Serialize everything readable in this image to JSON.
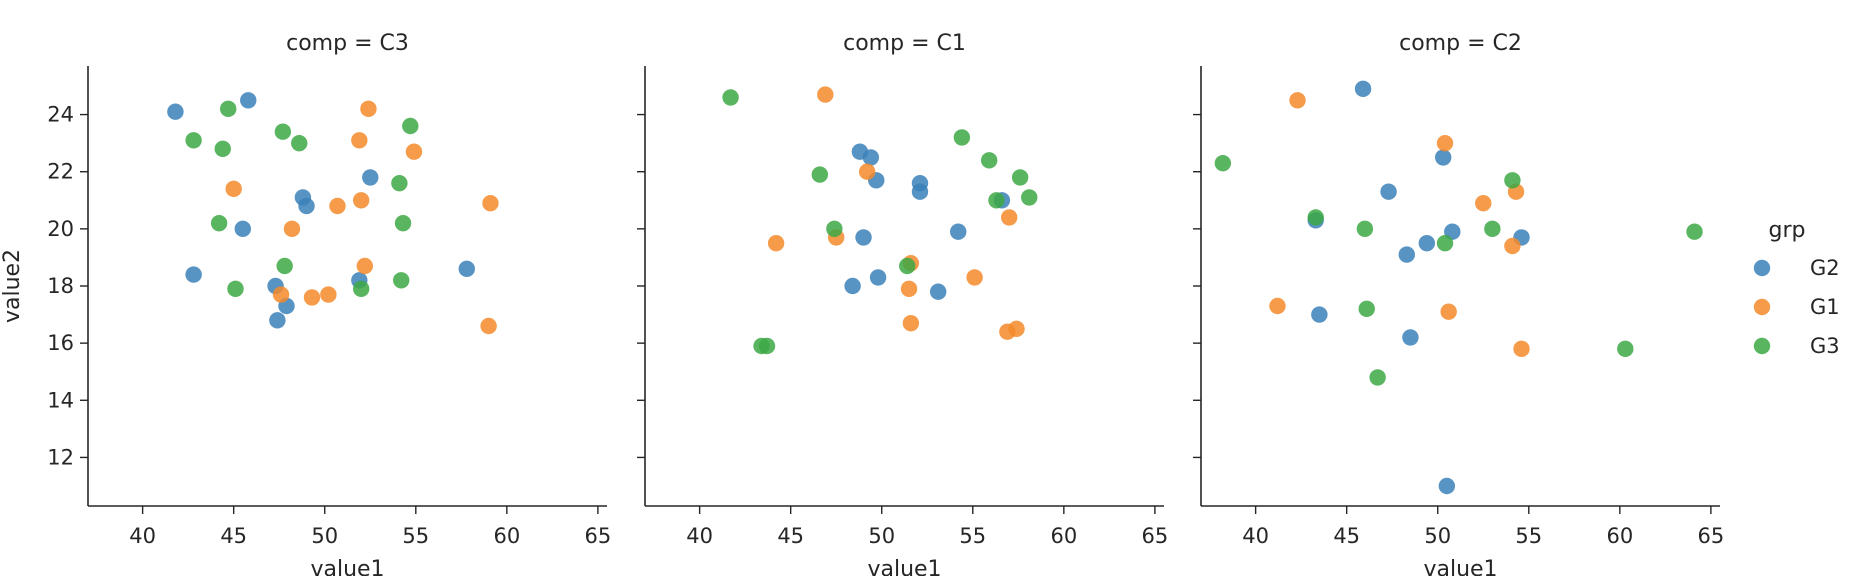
{
  "chart_data": {
    "type": "scatter",
    "facet_variable": "comp",
    "xlabel": "value1",
    "ylabel": "value2",
    "xlim": [
      37,
      65.5
    ],
    "ylim": [
      10.3,
      25.7
    ],
    "xticks": [
      40,
      45,
      50,
      55,
      60,
      65
    ],
    "yticks": [
      12,
      14,
      16,
      18,
      20,
      22,
      24
    ],
    "legend": {
      "title": "grp",
      "placement": "right",
      "entries": [
        {
          "name": "G2",
          "color": "#3a80b8"
        },
        {
          "name": "G1",
          "color": "#f58a2a"
        },
        {
          "name": "G3",
          "color": "#3da845"
        }
      ]
    },
    "facets": [
      {
        "title": "comp = C3",
        "series": [
          {
            "name": "G2",
            "points": [
              [
                41.8,
                24.1
              ],
              [
                45.8,
                24.5
              ],
              [
                42.8,
                18.4
              ],
              [
                45.5,
                20.0
              ],
              [
                48.8,
                21.1
              ],
              [
                49.0,
                20.8
              ],
              [
                52.5,
                21.8
              ],
              [
                47.3,
                18.0
              ],
              [
                47.9,
                17.3
              ],
              [
                47.4,
                16.8
              ],
              [
                51.9,
                18.2
              ],
              [
                57.8,
                18.6
              ]
            ]
          },
          {
            "name": "G1",
            "points": [
              [
                52.4,
                24.2
              ],
              [
                51.9,
                23.1
              ],
              [
                54.9,
                22.7
              ],
              [
                45.0,
                21.4
              ],
              [
                52.0,
                21.0
              ],
              [
                50.7,
                20.8
              ],
              [
                48.2,
                20.0
              ],
              [
                59.1,
                20.9
              ],
              [
                52.2,
                18.7
              ],
              [
                47.6,
                17.7
              ],
              [
                49.3,
                17.6
              ],
              [
                50.2,
                17.7
              ],
              [
                59.0,
                16.6
              ]
            ]
          },
          {
            "name": "G3",
            "points": [
              [
                42.8,
                23.1
              ],
              [
                44.7,
                24.2
              ],
              [
                44.4,
                22.8
              ],
              [
                47.7,
                23.4
              ],
              [
                48.6,
                23.0
              ],
              [
                54.7,
                23.6
              ],
              [
                54.1,
                21.6
              ],
              [
                44.2,
                20.2
              ],
              [
                54.3,
                20.2
              ],
              [
                47.8,
                18.7
              ],
              [
                45.1,
                17.9
              ],
              [
                52.0,
                17.9
              ],
              [
                54.2,
                18.2
              ]
            ]
          }
        ]
      },
      {
        "title": "comp = C1",
        "series": [
          {
            "name": "G2",
            "points": [
              [
                48.8,
                22.7
              ],
              [
                49.4,
                22.5
              ],
              [
                49.7,
                21.7
              ],
              [
                52.1,
                21.6
              ],
              [
                52.1,
                21.3
              ],
              [
                56.6,
                21.0
              ],
              [
                49.0,
                19.7
              ],
              [
                54.2,
                19.9
              ],
              [
                48.4,
                18.0
              ],
              [
                49.8,
                18.3
              ],
              [
                53.1,
                17.8
              ]
            ]
          },
          {
            "name": "G1",
            "points": [
              [
                46.9,
                24.7
              ],
              [
                49.2,
                22.0
              ],
              [
                57.0,
                20.4
              ],
              [
                44.2,
                19.5
              ],
              [
                47.5,
                19.7
              ],
              [
                51.6,
                18.8
              ],
              [
                51.5,
                17.9
              ],
              [
                55.1,
                18.3
              ],
              [
                51.6,
                16.7
              ],
              [
                56.9,
                16.4
              ],
              [
                57.4,
                16.5
              ]
            ]
          },
          {
            "name": "G3",
            "points": [
              [
                41.7,
                24.6
              ],
              [
                54.4,
                23.2
              ],
              [
                55.9,
                22.4
              ],
              [
                46.6,
                21.9
              ],
              [
                57.6,
                21.8
              ],
              [
                56.3,
                21.0
              ],
              [
                58.1,
                21.1
              ],
              [
                47.4,
                20.0
              ],
              [
                51.4,
                18.7
              ],
              [
                43.4,
                15.9
              ],
              [
                43.7,
                15.9
              ]
            ]
          }
        ]
      },
      {
        "title": "comp = C2",
        "series": [
          {
            "name": "G2",
            "points": [
              [
                45.9,
                24.9
              ],
              [
                50.3,
                22.5
              ],
              [
                47.3,
                21.3
              ],
              [
                43.3,
                20.3
              ],
              [
                50.8,
                19.9
              ],
              [
                54.6,
                19.7
              ],
              [
                49.4,
                19.5
              ],
              [
                48.3,
                19.1
              ],
              [
                43.5,
                17.0
              ],
              [
                48.5,
                16.2
              ],
              [
                50.5,
                11.0
              ]
            ]
          },
          {
            "name": "G1",
            "points": [
              [
                42.3,
                24.5
              ],
              [
                50.4,
                23.0
              ],
              [
                52.5,
                20.9
              ],
              [
                54.3,
                21.3
              ],
              [
                54.1,
                19.4
              ],
              [
                41.2,
                17.3
              ],
              [
                50.6,
                17.1
              ],
              [
                54.6,
                15.8
              ]
            ]
          },
          {
            "name": "G3",
            "points": [
              [
                38.2,
                22.3
              ],
              [
                54.1,
                21.7
              ],
              [
                43.3,
                20.4
              ],
              [
                46.0,
                20.0
              ],
              [
                53.0,
                20.0
              ],
              [
                50.4,
                19.5
              ],
              [
                64.1,
                19.9
              ],
              [
                46.1,
                17.2
              ],
              [
                60.3,
                15.8
              ],
              [
                46.7,
                14.8
              ]
            ]
          }
        ]
      }
    ]
  }
}
